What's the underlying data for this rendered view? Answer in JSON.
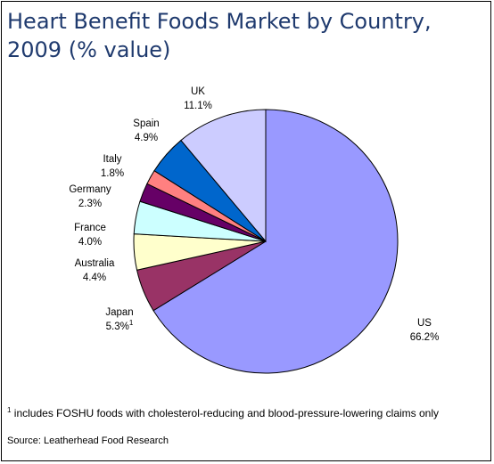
{
  "chart_data": {
    "type": "pie",
    "title_lines": [
      "Heart Benefit Foods Market by Country,",
      "2009 (% value)"
    ],
    "slices": [
      {
        "label": "US",
        "value": 66.2,
        "value_label": "66.2%",
        "color": "#9999ff"
      },
      {
        "label": "Japan",
        "value": 5.3,
        "value_label": "5.3%",
        "note_marker": "1",
        "color": "#993366"
      },
      {
        "label": "Australia",
        "value": 4.4,
        "value_label": "4.4%",
        "color": "#ffffcc"
      },
      {
        "label": "France",
        "value": 4.0,
        "value_label": "4.0%",
        "color": "#ccffff"
      },
      {
        "label": "Germany",
        "value": 2.3,
        "value_label": "2.3%",
        "color": "#660066"
      },
      {
        "label": "Italy",
        "value": 1.8,
        "value_label": "1.8%",
        "color": "#ff8080"
      },
      {
        "label": "Spain",
        "value": 4.9,
        "value_label": "4.9%",
        "color": "#0066cc"
      },
      {
        "label": "UK",
        "value": 11.1,
        "value_label": "11.1%",
        "color": "#ccccff"
      }
    ],
    "start_angle_deg": 0,
    "direction": "clockwise",
    "legend": "none"
  },
  "footnote": {
    "marker": "1",
    "text": " includes FOSHU  foods with cholesterol-reducing and blood-pressure-lowering claims only"
  },
  "source": "Source: Leatherhead Food Research"
}
